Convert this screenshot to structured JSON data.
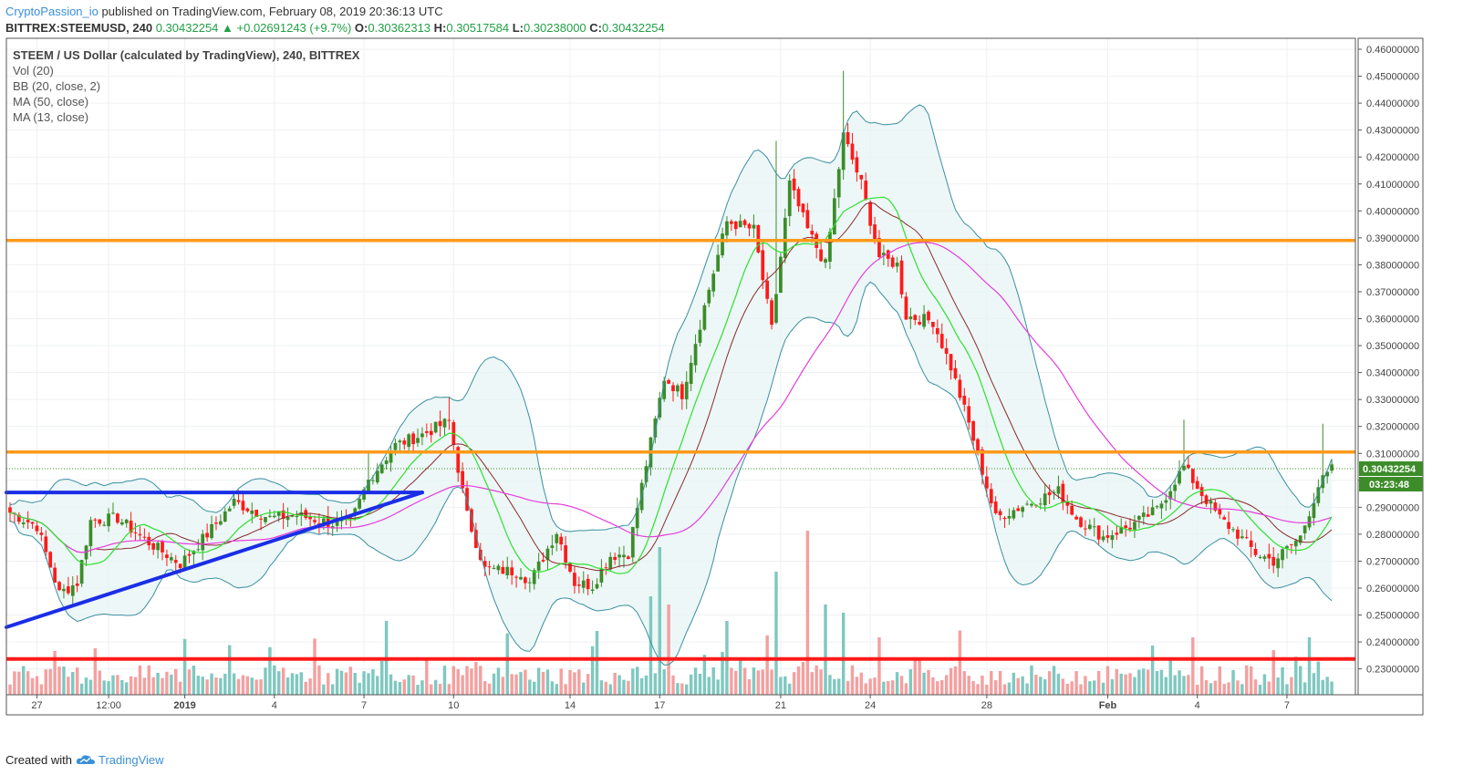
{
  "header": {
    "author": "CryptoPassion_io",
    "published_text": " published on TradingView.com, February 08, 2019 20:36:13 UTC",
    "symbol_label": "BITTREX:STEEMUSD, 240",
    "last_price": "0.30432254",
    "change": "▲ +0.02691243 (+9.7%)",
    "o_label": "O:",
    "o_value": "0.30362313",
    "h_label": "H:",
    "h_value": "0.30517584",
    "l_label": "L:",
    "l_value": "0.30238000",
    "c_label": "C:",
    "c_value": "0.30432254"
  },
  "legend": {
    "title": "STEEM / US Dollar (calculated by TradingView), 240, BITTREX",
    "items": [
      "Vol (20)",
      "BB (20, close, 2)",
      "MA (50, close)",
      "MA (13, close)"
    ]
  },
  "footer": {
    "created_with": "Created with",
    "brand": "TradingView"
  },
  "colors": {
    "up": "#3c8c2a",
    "down": "#ff1a1a",
    "bb_band": "#3a8fa0",
    "bb_fill": "#e6f3f3",
    "ma50": "#e63cdc",
    "ma13": "#2ee02e",
    "bb_basis": "#8b2a2a",
    "orange_line": "#ff9a1a",
    "red_line": "#ff1a1a",
    "blue_line": "#1a2ee6",
    "vol_up": "#7fc8c0",
    "vol_down": "#f4a0a0",
    "price_tag": "#3c8c2a"
  },
  "chart_data": {
    "type": "candlestick",
    "y_axis": {
      "ylim": [
        0.22,
        0.46
      ],
      "ticks": [
        "0.46000000",
        "0.45000000",
        "0.44000000",
        "0.43000000",
        "0.42000000",
        "0.41000000",
        "0.40000000",
        "0.39000000",
        "0.38000000",
        "0.37000000",
        "0.36000000",
        "0.35000000",
        "0.34000000",
        "0.33000000",
        "0.32000000",
        "0.31000000",
        "0.30000000",
        "0.29000000",
        "0.28000000",
        "0.27000000",
        "0.26000000",
        "0.25000000",
        "0.24000000",
        "0.23000000"
      ]
    },
    "x_axis": {
      "ticks": [
        {
          "label": "27",
          "i": 6
        },
        {
          "label": "12:00",
          "i": 22
        },
        {
          "label": "2019",
          "i": 39
        },
        {
          "label": "4",
          "i": 59
        },
        {
          "label": "7",
          "i": 79
        },
        {
          "label": "10",
          "i": 99
        },
        {
          "label": "14",
          "i": 125
        },
        {
          "label": "17",
          "i": 145
        },
        {
          "label": "21",
          "i": 172
        },
        {
          "label": "24",
          "i": 192
        },
        {
          "label": "28",
          "i": 218
        },
        {
          "label": "Feb",
          "i": 245
        },
        {
          "label": "4",
          "i": 265
        },
        {
          "label": "7",
          "i": 285
        }
      ]
    },
    "last_price_tag": "0.30432254",
    "countdown_tag": "03:23:48",
    "horizontal_lines": [
      {
        "name": "resistance-upper",
        "price": 0.389,
        "color": "orange"
      },
      {
        "name": "resistance-mid",
        "price": 0.3105,
        "color": "orange"
      },
      {
        "name": "support",
        "price": 0.2337,
        "color": "red"
      }
    ],
    "trend_lines": [
      {
        "name": "triangle-top",
        "from": {
          "i": 0,
          "price": 0.2955
        },
        "to": {
          "i": 92,
          "price": 0.2955
        }
      },
      {
        "name": "triangle-bottom",
        "from": {
          "i": 0,
          "price": 0.2455
        },
        "to": {
          "i": 92,
          "price": 0.2955
        }
      }
    ],
    "anchors": [
      [
        0,
        0.288
      ],
      [
        6,
        0.283
      ],
      [
        11,
        0.258
      ],
      [
        15,
        0.262
      ],
      [
        18,
        0.285
      ],
      [
        24,
        0.286
      ],
      [
        30,
        0.278
      ],
      [
        38,
        0.269
      ],
      [
        44,
        0.28
      ],
      [
        50,
        0.292
      ],
      [
        58,
        0.286
      ],
      [
        64,
        0.287
      ],
      [
        72,
        0.284
      ],
      [
        76,
        0.284
      ],
      [
        80,
        0.3
      ],
      [
        86,
        0.313
      ],
      [
        92,
        0.317
      ],
      [
        98,
        0.322
      ],
      [
        102,
        0.287
      ],
      [
        106,
        0.267
      ],
      [
        114,
        0.266
      ],
      [
        116,
        0.262
      ],
      [
        122,
        0.281
      ],
      [
        126,
        0.262
      ],
      [
        130,
        0.261
      ],
      [
        134,
        0.272
      ],
      [
        138,
        0.273
      ],
      [
        140,
        0.29
      ],
      [
        146,
        0.338
      ],
      [
        150,
        0.332
      ],
      [
        156,
        0.371
      ],
      [
        160,
        0.396
      ],
      [
        166,
        0.393
      ],
      [
        170,
        0.356
      ],
      [
        174,
        0.41
      ],
      [
        178,
        0.393
      ],
      [
        182,
        0.38
      ],
      [
        186,
        0.428
      ],
      [
        190,
        0.41
      ],
      [
        194,
        0.383
      ],
      [
        198,
        0.38
      ],
      [
        200,
        0.361
      ],
      [
        206,
        0.359
      ],
      [
        210,
        0.342
      ],
      [
        214,
        0.321
      ],
      [
        220,
        0.286
      ],
      [
        228,
        0.292
      ],
      [
        234,
        0.296
      ],
      [
        238,
        0.286
      ],
      [
        244,
        0.279
      ],
      [
        250,
        0.283
      ],
      [
        256,
        0.289
      ],
      [
        260,
        0.3
      ],
      [
        262,
        0.305
      ],
      [
        266,
        0.295
      ],
      [
        270,
        0.286
      ],
      [
        274,
        0.28
      ],
      [
        278,
        0.273
      ],
      [
        282,
        0.27
      ],
      [
        288,
        0.279
      ],
      [
        292,
        0.298
      ],
      [
        295,
        0.304
      ]
    ],
    "n_candles": 296,
    "volume_spikes": [
      [
        84,
        0.45
      ],
      [
        104,
        0.2
      ],
      [
        143,
        0.6
      ],
      [
        145,
        0.9
      ],
      [
        147,
        0.55
      ],
      [
        160,
        0.45
      ],
      [
        171,
        0.75
      ],
      [
        178,
        1.0
      ],
      [
        182,
        0.55
      ],
      [
        186,
        0.5
      ],
      [
        194,
        0.35
      ],
      [
        255,
        0.3
      ],
      [
        264,
        0.35
      ],
      [
        290,
        0.35
      ]
    ]
  }
}
